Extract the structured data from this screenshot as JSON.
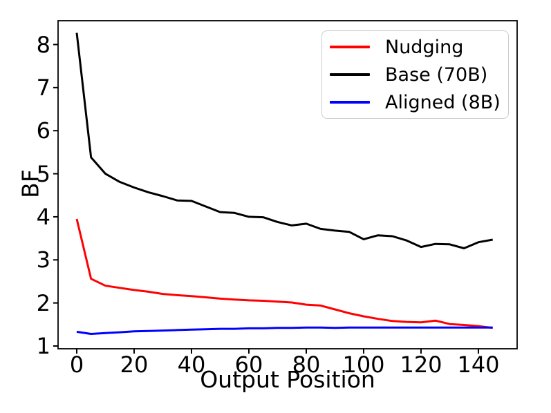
{
  "figure": {
    "background": "#ffffff",
    "spine_color": "#000000",
    "tick_color": "#000000"
  },
  "chart_data": {
    "type": "line",
    "title": "",
    "xlabel": "Output Position",
    "ylabel": "BF",
    "grid": false,
    "legend_position": "upper right",
    "xlim": [
      -6.5,
      153.5
    ],
    "ylim": [
      0.936,
      8.553
    ],
    "xticks": [
      0,
      20,
      40,
      60,
      80,
      100,
      120,
      140
    ],
    "yticks": [
      1,
      2,
      3,
      4,
      5,
      6,
      7,
      8
    ],
    "x": [
      0,
      5,
      10,
      15,
      20,
      25,
      30,
      35,
      40,
      45,
      50,
      55,
      60,
      65,
      70,
      75,
      80,
      85,
      90,
      95,
      100,
      105,
      110,
      115,
      120,
      125,
      130,
      135,
      140,
      145
    ],
    "series": [
      {
        "name": "Nudging",
        "color": "#ff0000",
        "values": [
          3.95,
          2.56,
          2.4,
          2.35,
          2.3,
          2.26,
          2.21,
          2.18,
          2.16,
          2.13,
          2.1,
          2.08,
          2.06,
          2.05,
          2.03,
          2.01,
          1.96,
          1.94,
          1.85,
          1.76,
          1.69,
          1.63,
          1.58,
          1.56,
          1.55,
          1.59,
          1.51,
          1.49,
          1.46,
          1.42
        ]
      },
      {
        "name": "Base (70B)",
        "color": "#000000",
        "values": [
          8.27,
          5.38,
          5.0,
          4.81,
          4.68,
          4.57,
          4.48,
          4.38,
          4.37,
          4.24,
          4.11,
          4.09,
          4.0,
          3.99,
          3.88,
          3.8,
          3.84,
          3.72,
          3.68,
          3.65,
          3.48,
          3.57,
          3.55,
          3.45,
          3.3,
          3.37,
          3.36,
          3.27,
          3.41,
          3.47
        ]
      },
      {
        "name": "Aligned (8B)",
        "color": "#0000ff",
        "values": [
          1.33,
          1.28,
          1.3,
          1.32,
          1.34,
          1.35,
          1.36,
          1.37,
          1.38,
          1.39,
          1.4,
          1.4,
          1.41,
          1.41,
          1.42,
          1.42,
          1.43,
          1.43,
          1.42,
          1.43,
          1.43,
          1.43,
          1.43,
          1.43,
          1.43,
          1.43,
          1.43,
          1.43,
          1.43,
          1.43
        ]
      }
    ]
  }
}
